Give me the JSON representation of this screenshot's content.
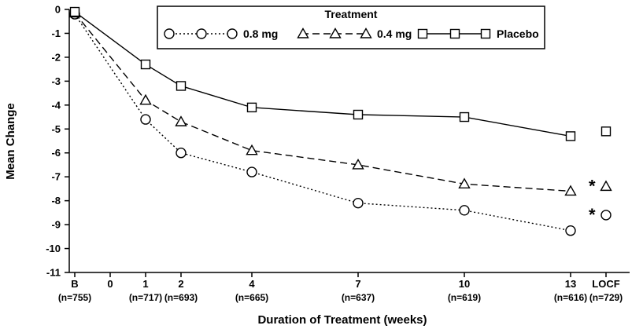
{
  "chart_data": {
    "type": "line",
    "title": "",
    "xlabel": "Duration of Treatment (weeks)",
    "ylabel": "Mean Change",
    "ylim": [
      -11,
      0
    ],
    "grid": false,
    "colors": {
      "stroke": "#000000",
      "background": "#ffffff"
    },
    "y_ticks": [
      "0",
      "-1",
      "-2",
      "-3",
      "-4",
      "-5",
      "-6",
      "-7",
      "-8",
      "-9",
      "-10",
      "-11"
    ],
    "x_ticks": [
      {
        "label": "B",
        "week": -1,
        "n": "(n=755)"
      },
      {
        "label": "0",
        "week": 0,
        "n": ""
      },
      {
        "label": "1",
        "week": 1,
        "n": "(n=717)"
      },
      {
        "label": "2",
        "week": 2,
        "n": "(n=693)"
      },
      {
        "label": "4",
        "week": 4,
        "n": "(n=665)"
      },
      {
        "label": "7",
        "week": 7,
        "n": "(n=637)"
      },
      {
        "label": "10",
        "week": 10,
        "n": "(n=619)"
      },
      {
        "label": "13",
        "week": 13,
        "n": "(n=616)"
      },
      {
        "label": "LOCF",
        "week": 14,
        "n": "(n=729)"
      }
    ],
    "legend": {
      "title": "Treatment",
      "position": "top-center"
    },
    "series": [
      {
        "name": "0.8 mg",
        "marker": "circle",
        "line": "dotted",
        "points": [
          {
            "week": -1,
            "value": -0.2
          },
          {
            "week": 1,
            "value": -4.6
          },
          {
            "week": 2,
            "value": -6.0
          },
          {
            "week": 4,
            "value": -6.8
          },
          {
            "week": 7,
            "value": -8.1
          },
          {
            "week": 10,
            "value": -8.4
          },
          {
            "week": 13,
            "value": -9.25
          }
        ],
        "locf": {
          "week": 14,
          "value": -8.6,
          "flag": "*"
        }
      },
      {
        "name": "0.4 mg",
        "marker": "triangle",
        "line": "dashed",
        "points": [
          {
            "week": -1,
            "value": -0.15
          },
          {
            "week": 1,
            "value": -3.8
          },
          {
            "week": 2,
            "value": -4.7
          },
          {
            "week": 4,
            "value": -5.9
          },
          {
            "week": 7,
            "value": -6.5
          },
          {
            "week": 10,
            "value": -7.3
          },
          {
            "week": 13,
            "value": -7.6
          }
        ],
        "locf": {
          "week": 14,
          "value": -7.4,
          "flag": "*"
        }
      },
      {
        "name": "Placebo",
        "marker": "square",
        "line": "solid",
        "points": [
          {
            "week": -1,
            "value": -0.1
          },
          {
            "week": 1,
            "value": -2.3
          },
          {
            "week": 2,
            "value": -3.2
          },
          {
            "week": 4,
            "value": -4.1
          },
          {
            "week": 7,
            "value": -4.4
          },
          {
            "week": 10,
            "value": -4.5
          },
          {
            "week": 13,
            "value": -5.3
          }
        ],
        "locf": {
          "week": 14,
          "value": -5.1,
          "flag": ""
        }
      }
    ]
  }
}
